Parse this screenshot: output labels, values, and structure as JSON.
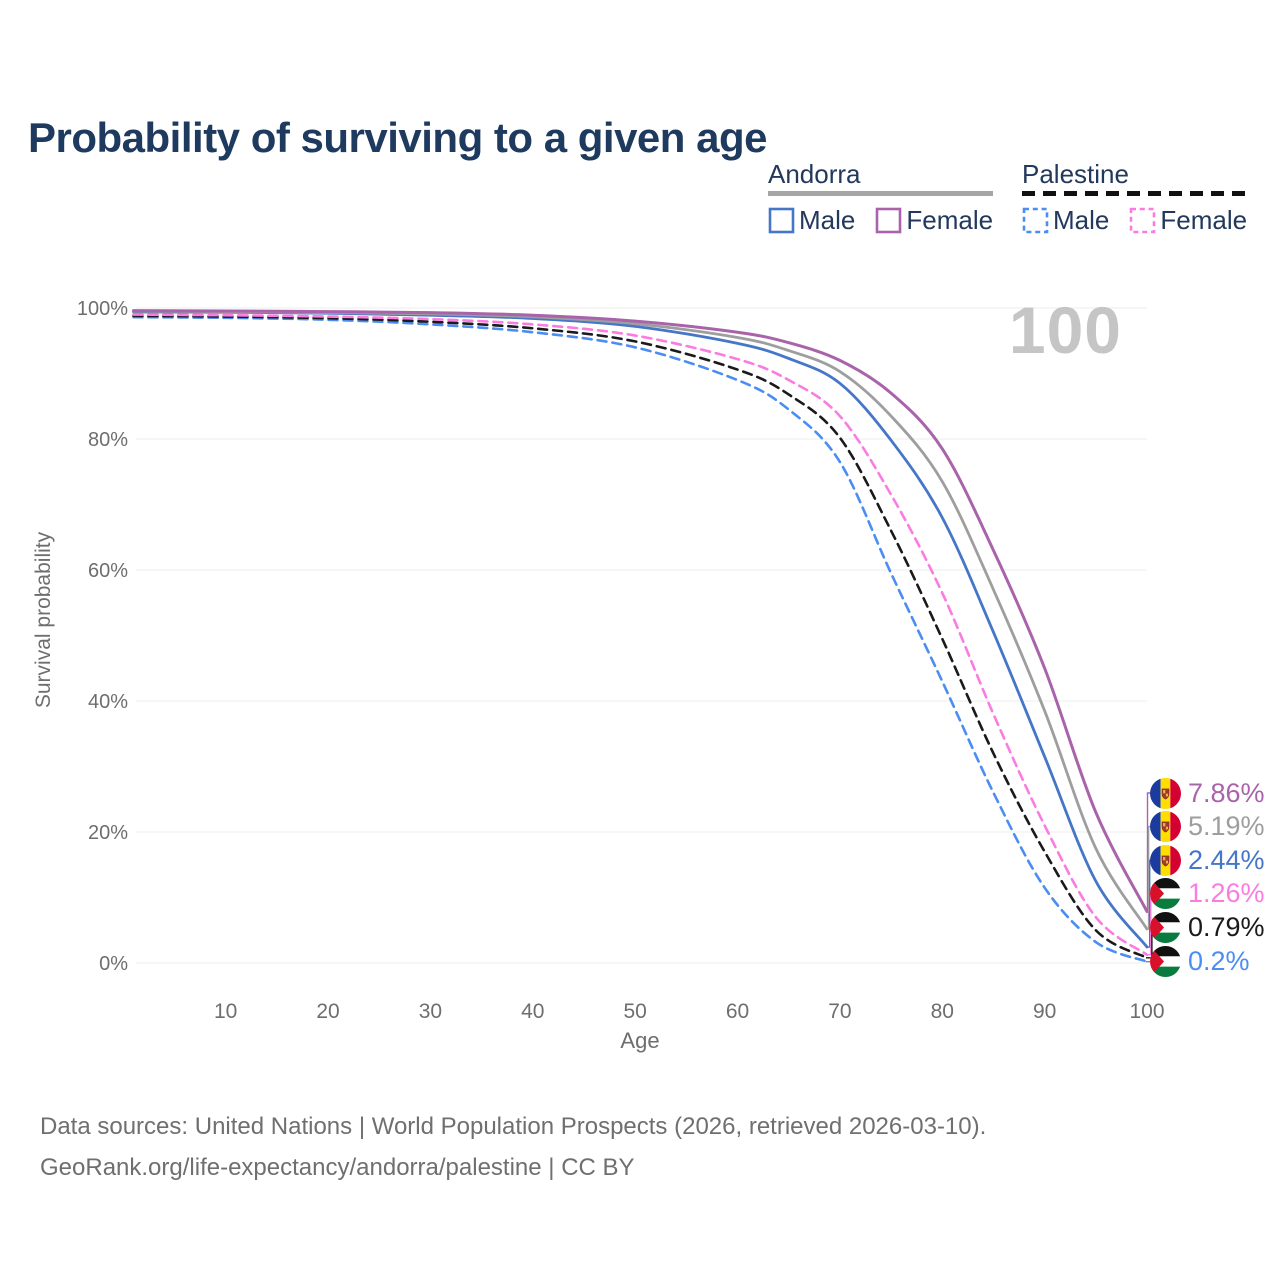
{
  "title": {
    "text": "Probability of surviving to a given age",
    "color": "#1e3a5f"
  },
  "legend": {
    "groups": [
      {
        "name": "Andorra",
        "line_style": "solid",
        "swatch_color": "#a6a6a6",
        "items": [
          {
            "label": "Male",
            "color": "#4576c8"
          },
          {
            "label": "Female",
            "color": "#a963ab"
          }
        ]
      },
      {
        "name": "Palestine",
        "line_style": "dashed",
        "swatch_color": "#1a1a1a",
        "items": [
          {
            "label": "Male",
            "color": "#4b8df2"
          },
          {
            "label": "Female",
            "color": "#fb7ce1"
          }
        ]
      }
    ]
  },
  "chart_data": {
    "type": "line",
    "title": "Probability of surviving to a given age",
    "xlabel": "Age",
    "ylabel": "Survival probability",
    "xlim": [
      1,
      100
    ],
    "ylim": [
      0,
      100
    ],
    "x_ticks": [
      10,
      20,
      30,
      40,
      50,
      60,
      70,
      80,
      90,
      100
    ],
    "y_ticks": [
      0,
      20,
      40,
      60,
      80,
      100
    ],
    "y_tick_labels": [
      "0%",
      "20%",
      "40%",
      "60%",
      "80%",
      "100%"
    ],
    "grid": "horizontal",
    "grid_color": "#ececec",
    "axis_text_color": "#6e6e6e",
    "watermark": "100",
    "ages": [
      1,
      10,
      20,
      30,
      40,
      50,
      60,
      65,
      70,
      75,
      80,
      85,
      90,
      95,
      100
    ],
    "series": [
      {
        "name": "Andorra Female",
        "country": "Andorra",
        "sex": "Female",
        "color": "#a963ab",
        "dash": "solid",
        "flag": "andorra-flag",
        "end_label": "7.86%",
        "values": [
          99.6,
          99.55,
          99.45,
          99.3,
          98.9,
          98.0,
          96.3,
          94.7,
          92.0,
          87.0,
          78.5,
          63,
          45,
          23,
          7.86
        ]
      },
      {
        "name": "Andorra (both sexes)",
        "country": "Andorra",
        "sex": "Both",
        "color": "#9e9e9e",
        "dash": "solid",
        "flag": "andorra-flag",
        "end_label": "5.19%",
        "values": [
          99.5,
          99.45,
          99.3,
          99.1,
          98.65,
          97.6,
          95.5,
          93.5,
          90.3,
          83.5,
          73.5,
          57,
          38.5,
          17.5,
          5.19
        ]
      },
      {
        "name": "Andorra Male",
        "country": "Andorra",
        "sex": "Male",
        "color": "#4576c8",
        "dash": "solid",
        "flag": "andorra-flag",
        "end_label": "2.44%",
        "values": [
          99.4,
          99.35,
          99.2,
          98.9,
          98.4,
          97.2,
          94.6,
          92.3,
          88.5,
          79.8,
          68,
          50.5,
          31.5,
          12.5,
          2.44
        ]
      },
      {
        "name": "Palestine Female",
        "country": "Palestine",
        "sex": "Female",
        "color": "#fb7ce1",
        "dash": "dashed",
        "flag": "palestine-flag",
        "end_label": "1.26%",
        "values": [
          99.0,
          98.9,
          98.7,
          98.3,
          97.5,
          95.8,
          92.2,
          89.0,
          83.5,
          71.5,
          56.5,
          38,
          21,
          7,
          1.26
        ]
      },
      {
        "name": "Palestine (both sexes)",
        "country": "Palestine",
        "sex": "Both",
        "color": "#1a1a1a",
        "dash": "dashed",
        "flag": "palestine-flag",
        "end_label": "0.79%",
        "values": [
          98.8,
          98.7,
          98.45,
          97.9,
          96.9,
          94.9,
          90.6,
          86.8,
          80.2,
          66,
          49.5,
          32,
          17,
          5,
          0.79
        ]
      },
      {
        "name": "Palestine Male",
        "country": "Palestine",
        "sex": "Male",
        "color": "#4b8df2",
        "dash": "dashed",
        "flag": "palestine-flag",
        "end_label": "0.2%",
        "values": [
          98.6,
          98.5,
          98.2,
          97.5,
          96.3,
          94.0,
          89.0,
          84.5,
          76.5,
          59.5,
          43,
          26,
          11.5,
          3.2,
          0.2
        ]
      }
    ]
  },
  "footer": {
    "line1": "Data sources: United Nations | World Population Prospects (2026, retrieved 2026-03-10).",
    "line2": "GeoRank.org/life-expectancy/andorra/palestine | CC BY",
    "color": "#6f6f6f"
  }
}
